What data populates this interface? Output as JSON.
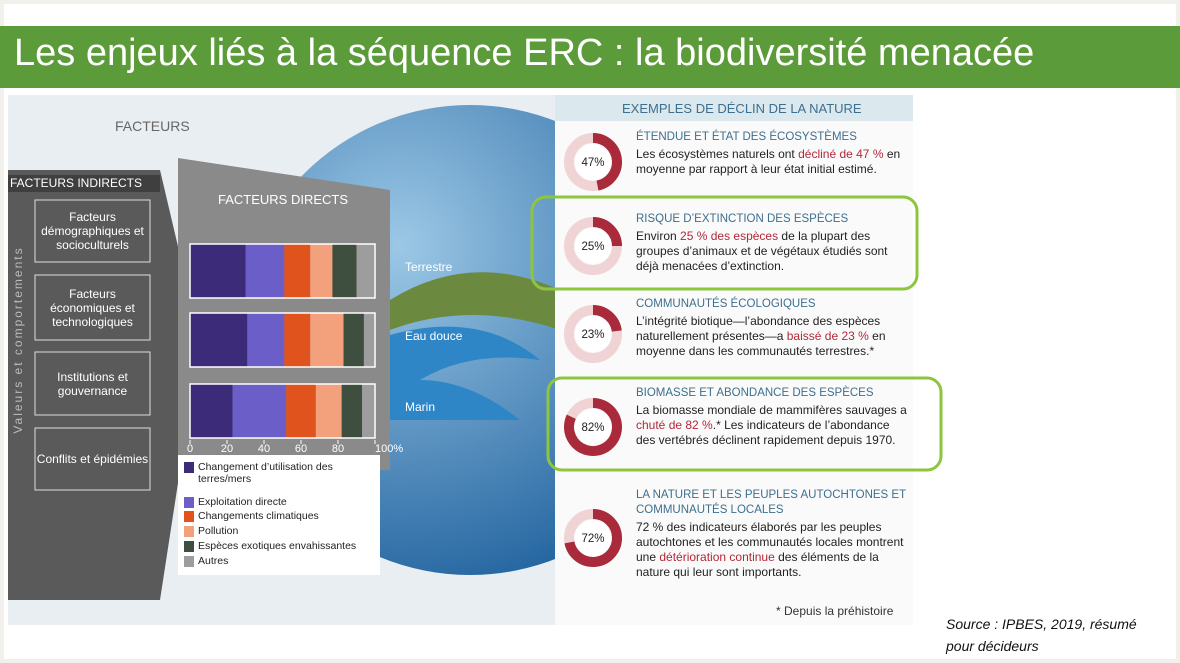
{
  "title": "Les enjeux liés à la séquence ERC : la biodiversité menacée",
  "factors": {
    "heading": "FACTEURS",
    "indirect_heading": "FACTEURS INDIRECTS",
    "side_label": "Valeurs et comportements",
    "indirect": [
      "Facteurs démographiques et socioculturels",
      "Facteurs économiques et technologiques",
      "Institutions et gouvernance",
      "Conflits et épidémies"
    ],
    "direct_heading": "FACTEURS DIRECTS"
  },
  "chart_data": {
    "type": "bar",
    "stacked": true,
    "orientation": "horizontal",
    "categories": [
      "Terrestre",
      "Eau douce",
      "Marin"
    ],
    "series": [
      {
        "name": "Changement d’utilisation des terres/mers",
        "color": "#3b2b78",
        "values": [
          30,
          31,
          23
        ]
      },
      {
        "name": "Exploitation directe",
        "color": "#6b5ec8",
        "values": [
          21,
          20,
          29
        ]
      },
      {
        "name": "Changements climatiques",
        "color": "#e1531d",
        "values": [
          14,
          14,
          16
        ]
      },
      {
        "name": "Pollution",
        "color": "#f3a07c",
        "values": [
          12,
          18,
          14
        ]
      },
      {
        "name": "Espèces exotiques envahissantes",
        "color": "#3e4e3f",
        "values": [
          13,
          11,
          11
        ]
      },
      {
        "name": "Autres",
        "color": "#9d9d9d",
        "values": [
          10,
          6,
          7
        ]
      }
    ],
    "xlim": [
      0,
      100
    ],
    "xticks": [
      0,
      20,
      40,
      60,
      80,
      {
        "value": 100,
        "label": "100%"
      }
    ]
  },
  "examples": {
    "heading": "EXEMPLES DE DÉCLIN DE LA NATURE",
    "items": [
      {
        "title": "ÉTENDUE ET ÉTAT DES ÉCOSYSTÈMES",
        "value": 47,
        "value_label": "47%",
        "text": [
          "Les écosystèmes naturels ont ",
          "décliné de 47 %",
          " en moyenne par rapport à leur état initial estimé."
        ]
      },
      {
        "title": "RISQUE D’EXTINCTION DES ESPÈCES",
        "value": 25,
        "value_label": "25%",
        "text": [
          "Environ ",
          "25 % des espèces",
          " de la plupart des groupes d’animaux et de végétaux étudiés sont déjà menacées d’extinction."
        ]
      },
      {
        "title": "COMMUNAUTÉS ÉCOLOGIQUES",
        "value": 23,
        "value_label": "23%",
        "text": [
          "L’intégrité biotique—l’abondance des espèces naturellement présentes—a ",
          "baissé de 23 %",
          " en moyenne dans les communautés terrestres.*"
        ]
      },
      {
        "title": "BIOMASSE ET ABONDANCE DES ESPÈCES",
        "value": 82,
        "value_label": "82%",
        "text": [
          "La biomasse mondiale de mammifères sauvages a ",
          "chuté de 82 %",
          ".* Les indicateurs de l’abondance des vertébrés déclinent rapidement depuis 1970."
        ]
      },
      {
        "title": "LA NATURE ET LES PEUPLES AUTOCHTONES ET COMMUNAUTÉS LOCALES",
        "value": 72,
        "value_label": "72%",
        "text": [
          "72 % des indicateurs élaborés par les peuples autochtones et les communautés locales montrent une ",
          "détérioration continue",
          " des éléments de la nature qui leur sont importants."
        ]
      }
    ],
    "footnote": "* Depuis la préhistoire"
  },
  "source": "Source : IPBES, 2019, résumé pour décideurs"
}
